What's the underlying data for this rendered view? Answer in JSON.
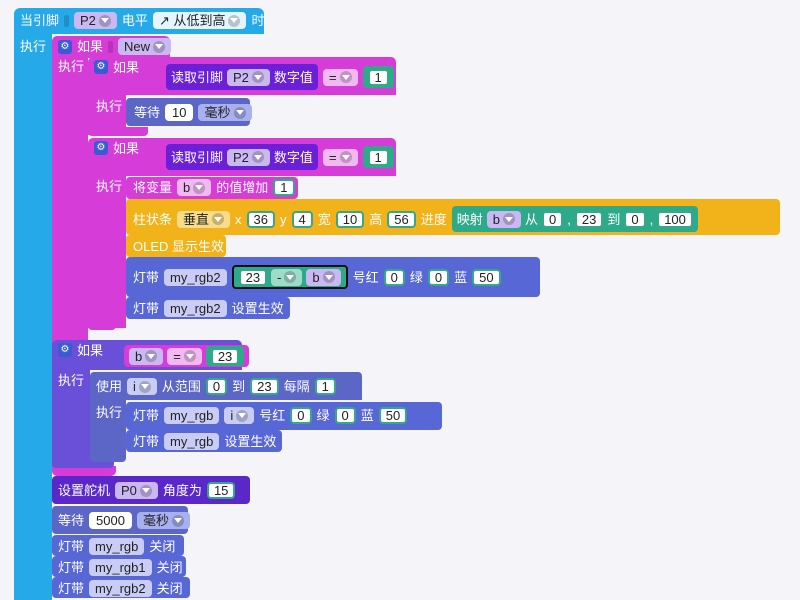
{
  "colors": {
    "event_cyan": "#26a9e8",
    "control_magenta": "#d63cd8",
    "control_purple": "#6a50d8",
    "read_pin_purple": "#6b1fd7",
    "wait_indigo": "#5b66c7",
    "math_teal": "#2eaa8a",
    "led_indigo": "#5867d6",
    "oled_amber": "#f2b21a",
    "servo_indigo": "#5a28c8"
  },
  "event": {
    "label_a": "当引脚",
    "pin": "P2",
    "label_b": "电平",
    "trigger": "↗ 从低到高",
    "label_c": "时",
    "do_label": "执行"
  },
  "if_new": {
    "gear": "gear-icon",
    "label": "如果",
    "value": "New",
    "do_label": "执行"
  },
  "if1": {
    "label": "如果",
    "read": {
      "label": "读取引脚",
      "pin": "P2",
      "suffix": "数字值"
    },
    "op": "=",
    "value": "1",
    "do_label": "执行",
    "wait": {
      "label": "等待",
      "value": "10",
      "unit": "毫秒"
    }
  },
  "if2": {
    "label": "如果",
    "read": {
      "label": "读取引脚",
      "pin": "P2",
      "suffix": "数字值"
    },
    "op": "=",
    "value": "1",
    "do_label": "执行",
    "incr": {
      "label_a": "将变量",
      "var": "b",
      "label_b": "的值增加",
      "value": "1"
    },
    "bar": {
      "label": "柱状条",
      "dir": "垂直",
      "x_label": "x",
      "x": "36",
      "y_label": "y",
      "y": "4",
      "w_label": "宽",
      "w": "10",
      "h_label": "高",
      "h": "56",
      "p_label": "进度",
      "map_label": "映射",
      "map_var": "b",
      "from_label": "从",
      "from_a": "0",
      "sep1": ",",
      "from_b": "23",
      "to_label": "到",
      "to_a": "0",
      "sep2": ",",
      "to_b": "100"
    },
    "oled": "OLED 显示生效",
    "led": {
      "label": "灯带",
      "strip": "my_rgb2",
      "n": "23",
      "op": "-",
      "var": "b",
      "idx_label": "号红",
      "r": "0",
      "g_label": "绿",
      "g": "0",
      "b_label": "蓝",
      "b": "50"
    },
    "led_apply": {
      "label": "灯带",
      "strip": "my_rgb2",
      "suffix": "设置生效"
    }
  },
  "if3": {
    "label": "如果",
    "var": "b",
    "op": "=",
    "value": "23",
    "do_label": "执行",
    "loop": {
      "label": "使用",
      "var": "i",
      "from_label": "从范围",
      "from": "0",
      "to_label": "到",
      "to": "23",
      "step_label": "每隔",
      "step": "1",
      "do_label": "执行",
      "led": {
        "label": "灯带",
        "strip": "my_rgb",
        "var": "i",
        "idx_label": "号红",
        "r": "0",
        "g_label": "绿",
        "g": "0",
        "b_label": "蓝",
        "b": "50"
      },
      "led_apply": {
        "label": "灯带",
        "strip": "my_rgb",
        "suffix": "设置生效"
      }
    }
  },
  "servo": {
    "label": "设置舵机",
    "pin": "P0",
    "angle_label": "角度为",
    "angle": "15"
  },
  "wait2": {
    "label": "等待",
    "value": "5000",
    "unit": "毫秒"
  },
  "off1": {
    "label": "灯带",
    "strip": "my_rgb",
    "suffix": "关闭"
  },
  "off2": {
    "label": "灯带",
    "strip": "my_rgb1",
    "suffix": "关闭"
  },
  "off3": {
    "label": "灯带",
    "strip": "my_rgb2",
    "suffix": "关闭"
  }
}
